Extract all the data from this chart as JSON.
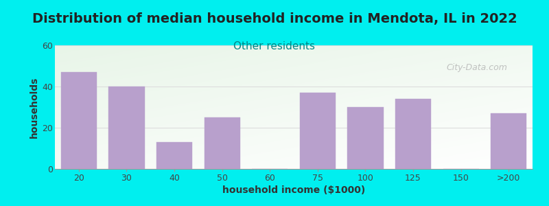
{
  "title": "Distribution of median household income in Mendota, IL in 2022",
  "subtitle": "Other residents",
  "xlabel": "household income ($1000)",
  "ylabel": "households",
  "categories": [
    "20",
    "30",
    "40",
    "50",
    "60",
    "75",
    "100",
    "125",
    "150",
    ">200"
  ],
  "values": [
    47,
    40,
    13,
    25,
    0,
    37,
    30,
    34,
    0,
    27
  ],
  "bar_color": "#b8a0cc",
  "bar_edgecolor": "#b8a0cc",
  "background_color": "#00efef",
  "plot_bg_topleft": "#e8f5e8",
  "plot_bg_bottomright": "#ffffff",
  "ylim": [
    0,
    60
  ],
  "yticks": [
    0,
    20,
    40,
    60
  ],
  "title_fontsize": 14,
  "title_color": "#222222",
  "subtitle_fontsize": 11,
  "subtitle_color": "#008888",
  "axis_label_fontsize": 10,
  "axis_label_color": "#333333",
  "tick_fontsize": 9,
  "tick_color": "#444444",
  "watermark_text": "City-Data.com",
  "watermark_color": "#aaaaaa",
  "grid_color": "#dddddd"
}
